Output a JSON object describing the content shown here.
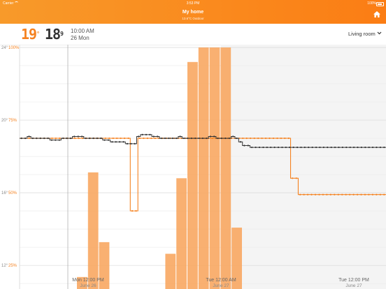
{
  "status_bar": {
    "carrier": "Carrier",
    "time": "3:53 PM",
    "battery": "100%"
  },
  "header": {
    "title": "My home",
    "subtitle": "13.6°C Outdoor"
  },
  "info": {
    "set_temp": "19",
    "set_deg": "°",
    "current_temp": "18",
    "current_deg": "9",
    "time": "10:00 AM",
    "date": "26 Mon",
    "room": "Living room"
  },
  "colors": {
    "accent": "#f58220",
    "setpoint": "#f58220",
    "measured": "#333333",
    "bars": "#f8a762"
  },
  "chart_data": {
    "type": "line",
    "y_axes": [
      {
        "side": "left",
        "labels": [
          "24°",
          "20°",
          "16°",
          "12°"
        ],
        "values": [
          24,
          20,
          16,
          12
        ]
      },
      {
        "side": "left",
        "labels": [
          "100%",
          "75%",
          "50%",
          "25%"
        ],
        "values": [
          100,
          75,
          50,
          25
        ]
      }
    ],
    "x_ticks": [
      {
        "label": "Mon 12:00 PM",
        "sub": "June 26"
      },
      {
        "label": "Tue 12:00 AM",
        "sub": "June 27"
      },
      {
        "label": "Tue 12:00 PM",
        "sub": "June 27"
      }
    ],
    "series": [
      {
        "y": [
          19,
          19,
          19,
          19,
          19,
          19,
          19,
          19,
          19,
          19,
          19,
          19,
          19,
          19,
          19,
          19,
          19,
          19,
          19,
          19,
          19,
          19,
          19,
          19,
          19,
          19,
          19,
          19,
          19,
          15,
          15,
          19,
          19,
          19,
          19,
          19,
          19,
          19,
          19,
          19,
          19,
          19,
          19,
          19,
          19,
          19,
          19,
          19,
          19,
          19,
          19,
          19,
          19,
          19,
          19,
          19,
          19,
          19,
          19,
          19,
          19,
          19,
          19,
          19,
          19,
          19,
          19,
          19,
          19,
          19,
          19,
          16.8,
          16.8,
          15.9,
          15.9,
          15.9,
          15.9,
          15.9,
          15.9,
          15.9,
          15.9,
          15.9,
          15.9,
          15.9,
          15.9,
          15.9,
          15.9,
          15.9,
          15.9,
          15.9,
          15.9,
          15.9,
          15.9,
          15.9,
          15.9,
          15.9
        ]
      },
      {
        "y": [
          19,
          19,
          19.1,
          19,
          19,
          19,
          19,
          19,
          18.9,
          18.9,
          18.9,
          19,
          19,
          19,
          19.1,
          19.1,
          19.1,
          19,
          19,
          19,
          19,
          19,
          18.9,
          18.9,
          18.8,
          18.8,
          18.8,
          18.8,
          18.7,
          18.7,
          18.7,
          19.1,
          19.2,
          19.2,
          19.2,
          19.1,
          19.1,
          19,
          19,
          19,
          19,
          19,
          19.1,
          19,
          19,
          19,
          19,
          19,
          19,
          19,
          19.1,
          19.1,
          19,
          19,
          19,
          19,
          19.1,
          19,
          18.8,
          18.6,
          18.6,
          18.5,
          18.5,
          18.5,
          18.5,
          18.5,
          18.5,
          18.5,
          18.5,
          18.5,
          18.5,
          18.5,
          18.5,
          18.5,
          18.5,
          18.5,
          18.5,
          18.5,
          18.5,
          18.5,
          18.5,
          18.5,
          18.5,
          18.5,
          18.5,
          18.5,
          18.5,
          18.5,
          18.5,
          18.5,
          18.5,
          18.5,
          18.5,
          18.5,
          18.5,
          18.5,
          18.5
        ]
      },
      {
        "y": [
          2,
          7,
          2,
          2,
          2,
          21,
          57,
          33,
          0,
          2,
          7,
          7,
          0,
          29,
          55,
          95,
          100,
          100,
          100,
          38,
          0,
          0,
          0,
          0,
          0,
          0,
          0,
          0,
          0,
          0,
          0,
          2,
          0,
          3,
          0,
          0,
          0,
          0,
          3,
          0,
          5,
          0,
          0,
          0,
          0,
          0,
          0,
          0,
          0,
          0,
          0,
          0
        ]
      }
    ]
  }
}
